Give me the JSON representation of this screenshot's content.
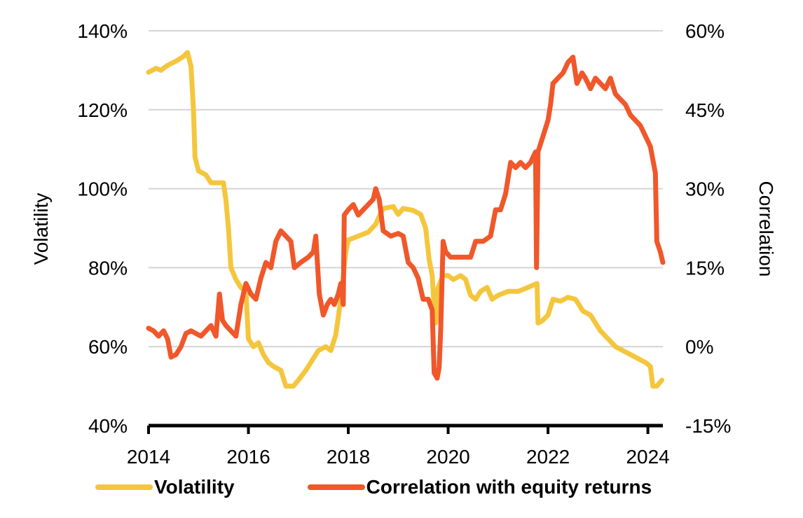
{
  "chart_data": {
    "type": "line",
    "x_range": [
      2014,
      2024.3
    ],
    "x_ticks": [
      "2014",
      "2016",
      "2018",
      "2020",
      "2022",
      "2024"
    ],
    "y_left": {
      "label": "Volatility",
      "range": [
        40,
        140
      ],
      "ticks": [
        "140%",
        "120%",
        "100%",
        "80%",
        "60%",
        "40%"
      ]
    },
    "y_right": {
      "label": "Correlation",
      "range": [
        -15,
        60
      ],
      "ticks": [
        "60%",
        "45%",
        "30%",
        "15%",
        "0%",
        "-15%"
      ]
    },
    "grid": true,
    "legend_position": "bottom",
    "series": [
      {
        "name": "Volatility",
        "axis": "left",
        "color": "#f4c63d",
        "points": [
          [
            2014.0,
            129.5
          ],
          [
            2014.15,
            130.5
          ],
          [
            2014.25,
            130
          ],
          [
            2014.33,
            130.8
          ],
          [
            2014.42,
            131.5
          ],
          [
            2014.55,
            132.3
          ],
          [
            2014.7,
            133.5
          ],
          [
            2014.78,
            134.5
          ],
          [
            2014.85,
            131
          ],
          [
            2014.9,
            120
          ],
          [
            2014.93,
            108
          ],
          [
            2015.0,
            104.5
          ],
          [
            2015.15,
            103.5
          ],
          [
            2015.25,
            101.5
          ],
          [
            2015.5,
            101.5
          ],
          [
            2015.55,
            97
          ],
          [
            2015.6,
            90
          ],
          [
            2015.65,
            80
          ],
          [
            2015.75,
            77
          ],
          [
            2015.85,
            75
          ],
          [
            2015.95,
            74
          ],
          [
            2016.0,
            62
          ],
          [
            2016.1,
            60
          ],
          [
            2016.2,
            61
          ],
          [
            2016.3,
            58
          ],
          [
            2016.4,
            56
          ],
          [
            2016.5,
            55
          ],
          [
            2016.65,
            54
          ],
          [
            2016.75,
            50
          ],
          [
            2016.9,
            50
          ],
          [
            2017.0,
            51.5
          ],
          [
            2017.15,
            54
          ],
          [
            2017.3,
            57
          ],
          [
            2017.4,
            59
          ],
          [
            2017.55,
            60
          ],
          [
            2017.65,
            59
          ],
          [
            2017.75,
            63
          ],
          [
            2017.85,
            72
          ],
          [
            2017.95,
            84
          ],
          [
            2018.0,
            87
          ],
          [
            2018.2,
            88
          ],
          [
            2018.4,
            89
          ],
          [
            2018.55,
            91
          ],
          [
            2018.62,
            93
          ],
          [
            2018.7,
            95
          ],
          [
            2018.9,
            95.5
          ],
          [
            2019.0,
            93.5
          ],
          [
            2019.1,
            95
          ],
          [
            2019.3,
            94.5
          ],
          [
            2019.45,
            93.5
          ],
          [
            2019.55,
            90
          ],
          [
            2019.62,
            82
          ],
          [
            2019.68,
            78
          ],
          [
            2019.72,
            70
          ],
          [
            2019.75,
            66
          ],
          [
            2019.8,
            75
          ],
          [
            2019.9,
            78
          ],
          [
            2020.0,
            78
          ],
          [
            2020.1,
            77
          ],
          [
            2020.25,
            78
          ],
          [
            2020.35,
            77
          ],
          [
            2020.45,
            73
          ],
          [
            2020.55,
            72
          ],
          [
            2020.65,
            74
          ],
          [
            2020.78,
            75
          ],
          [
            2020.88,
            72
          ],
          [
            2021.0,
            73
          ],
          [
            2021.2,
            74
          ],
          [
            2021.4,
            74
          ],
          [
            2021.6,
            75
          ],
          [
            2021.78,
            76
          ],
          [
            2021.8,
            66
          ],
          [
            2021.88,
            66.5
          ],
          [
            2022.0,
            68
          ],
          [
            2022.1,
            72
          ],
          [
            2022.25,
            71.5
          ],
          [
            2022.4,
            72.5
          ],
          [
            2022.55,
            72
          ],
          [
            2022.7,
            69
          ],
          [
            2022.85,
            68
          ],
          [
            2022.95,
            66
          ],
          [
            2023.05,
            64
          ],
          [
            2023.2,
            62
          ],
          [
            2023.35,
            60
          ],
          [
            2023.5,
            59
          ],
          [
            2023.65,
            58
          ],
          [
            2023.8,
            57
          ],
          [
            2023.95,
            56
          ],
          [
            2024.05,
            55
          ],
          [
            2024.1,
            50
          ],
          [
            2024.18,
            50
          ],
          [
            2024.28,
            51.5
          ]
        ]
      },
      {
        "name": "Correlation with equity returns",
        "axis": "right",
        "color": "#f0572a",
        "points": [
          [
            2014.0,
            3.5
          ],
          [
            2014.1,
            3
          ],
          [
            2014.2,
            2
          ],
          [
            2014.3,
            3
          ],
          [
            2014.38,
            1.5
          ],
          [
            2014.45,
            -2
          ],
          [
            2014.55,
            -1.5
          ],
          [
            2014.65,
            0
          ],
          [
            2014.75,
            2.5
          ],
          [
            2014.85,
            3
          ],
          [
            2014.95,
            2.5
          ],
          [
            2015.05,
            2
          ],
          [
            2015.15,
            3
          ],
          [
            2015.25,
            4
          ],
          [
            2015.35,
            2
          ],
          [
            2015.42,
            10
          ],
          [
            2015.48,
            5
          ],
          [
            2015.55,
            4
          ],
          [
            2015.65,
            3
          ],
          [
            2015.75,
            2
          ],
          [
            2015.85,
            8
          ],
          [
            2015.95,
            12
          ],
          [
            2016.05,
            10
          ],
          [
            2016.15,
            9
          ],
          [
            2016.25,
            13
          ],
          [
            2016.35,
            16
          ],
          [
            2016.45,
            15
          ],
          [
            2016.55,
            20
          ],
          [
            2016.65,
            22
          ],
          [
            2016.75,
            21
          ],
          [
            2016.85,
            20
          ],
          [
            2016.92,
            15
          ],
          [
            2017.05,
            16
          ],
          [
            2017.2,
            17
          ],
          [
            2017.3,
            18
          ],
          [
            2017.35,
            21
          ],
          [
            2017.42,
            10
          ],
          [
            2017.5,
            6
          ],
          [
            2017.58,
            8
          ],
          [
            2017.65,
            9
          ],
          [
            2017.72,
            8
          ],
          [
            2017.8,
            10
          ],
          [
            2017.85,
            12
          ],
          [
            2017.9,
            8
          ],
          [
            2017.92,
            25
          ],
          [
            2018.0,
            26
          ],
          [
            2018.1,
            27
          ],
          [
            2018.2,
            25
          ],
          [
            2018.3,
            26
          ],
          [
            2018.4,
            27
          ],
          [
            2018.5,
            28
          ],
          [
            2018.55,
            30
          ],
          [
            2018.62,
            28
          ],
          [
            2018.7,
            22
          ],
          [
            2018.85,
            21
          ],
          [
            2019.0,
            21.5
          ],
          [
            2019.1,
            21
          ],
          [
            2019.2,
            16
          ],
          [
            2019.3,
            15
          ],
          [
            2019.4,
            13
          ],
          [
            2019.5,
            9
          ],
          [
            2019.6,
            9
          ],
          [
            2019.68,
            7
          ],
          [
            2019.72,
            -5
          ],
          [
            2019.78,
            -6
          ],
          [
            2019.82,
            -4
          ],
          [
            2019.85,
            3
          ],
          [
            2019.9,
            20
          ],
          [
            2019.95,
            18
          ],
          [
            2020.05,
            17
          ],
          [
            2020.2,
            17
          ],
          [
            2020.35,
            17
          ],
          [
            2020.45,
            17
          ],
          [
            2020.55,
            20
          ],
          [
            2020.7,
            20
          ],
          [
            2020.85,
            21
          ],
          [
            2020.95,
            26
          ],
          [
            2021.05,
            26
          ],
          [
            2021.15,
            29
          ],
          [
            2021.25,
            35
          ],
          [
            2021.35,
            34
          ],
          [
            2021.45,
            35
          ],
          [
            2021.55,
            34
          ],
          [
            2021.65,
            35
          ],
          [
            2021.75,
            37
          ],
          [
            2021.77,
            15
          ],
          [
            2021.8,
            37
          ],
          [
            2021.9,
            40
          ],
          [
            2022.0,
            43
          ],
          [
            2022.05,
            46
          ],
          [
            2022.1,
            50
          ],
          [
            2022.2,
            51
          ],
          [
            2022.3,
            52
          ],
          [
            2022.4,
            54
          ],
          [
            2022.5,
            55
          ],
          [
            2022.58,
            50
          ],
          [
            2022.68,
            52
          ],
          [
            2022.75,
            51
          ],
          [
            2022.85,
            49
          ],
          [
            2022.95,
            51
          ],
          [
            2023.05,
            50
          ],
          [
            2023.15,
            49
          ],
          [
            2023.25,
            51
          ],
          [
            2023.35,
            48
          ],
          [
            2023.45,
            47
          ],
          [
            2023.55,
            46
          ],
          [
            2023.65,
            44
          ],
          [
            2023.75,
            43
          ],
          [
            2023.85,
            42
          ],
          [
            2023.95,
            40
          ],
          [
            2024.05,
            38
          ],
          [
            2024.15,
            33
          ],
          [
            2024.18,
            20
          ],
          [
            2024.25,
            18
          ],
          [
            2024.3,
            16
          ]
        ]
      }
    ]
  },
  "legend": {
    "items": [
      {
        "label": "Volatility",
        "color": "#f4c63d"
      },
      {
        "label": "Correlation with equity returns",
        "color": "#f0572a"
      }
    ]
  }
}
